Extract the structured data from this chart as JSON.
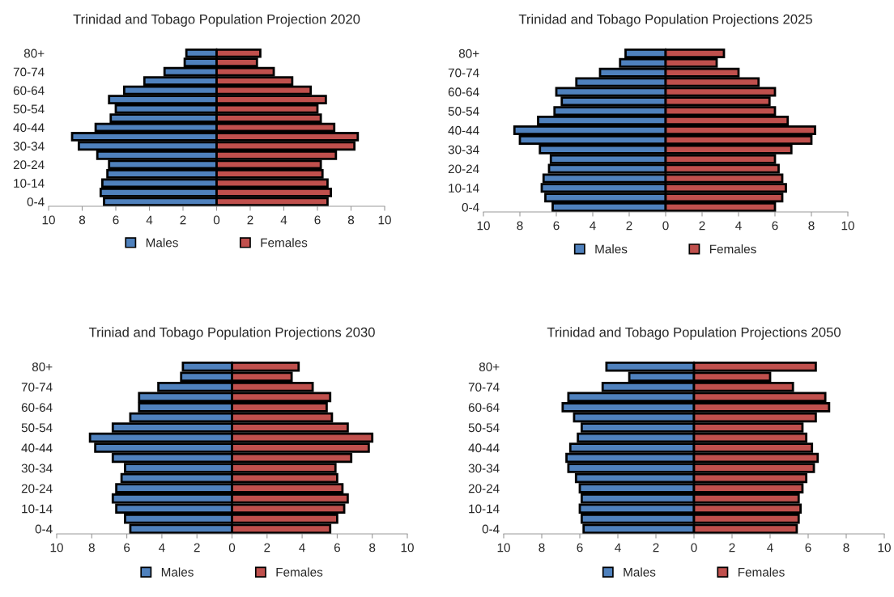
{
  "chart_data": [
    {
      "type": "bar",
      "orientation": "horizontal",
      "title": "Trinidad and Tobago Population Projection 2020",
      "categories": [
        "80+",
        null,
        "70-74",
        null,
        "60-64",
        null,
        "50-54",
        null,
        "40-44",
        null,
        "30-34",
        null,
        "20-24",
        null,
        "10-14",
        null,
        "0-4"
      ],
      "series": [
        {
          "name": "Males",
          "color": "#4f81bd",
          "values": [
            -1.8,
            -1.9,
            -3.1,
            -4.3,
            -5.5,
            -6.4,
            -6.0,
            -6.3,
            -7.2,
            -8.6,
            -8.2,
            -7.1,
            -6.4,
            -6.5,
            -6.8,
            -6.9,
            -6.7
          ]
        },
        {
          "name": "Females",
          "color": "#c0504d",
          "values": [
            2.6,
            2.4,
            3.4,
            4.5,
            5.6,
            6.5,
            6.0,
            6.2,
            7.0,
            8.4,
            8.2,
            7.1,
            6.2,
            6.3,
            6.6,
            6.8,
            6.6
          ]
        }
      ],
      "xlim": [
        -10,
        10
      ],
      "xticks": [
        {
          "value": -10,
          "label": "10"
        },
        {
          "value": -8,
          "label": "8"
        },
        {
          "value": -6,
          "label": "6"
        },
        {
          "value": -4,
          "label": "4"
        },
        {
          "value": -2,
          "label": "2"
        },
        0,
        2,
        4,
        6,
        8,
        10
      ],
      "legend": "bottom",
      "stacked": true
    },
    {
      "type": "bar",
      "orientation": "horizontal",
      "title": "Trinidad and Tobago Population Projections 2025",
      "categories": [
        "80+",
        null,
        "70-74",
        null,
        "60-64",
        null,
        "50-54",
        null,
        "40-44",
        null,
        "30-34",
        null,
        "20-24",
        null,
        "10-14",
        null,
        "0-4"
      ],
      "series": [
        {
          "name": "Males",
          "color": "#4f81bd",
          "values": [
            -2.2,
            -2.5,
            -3.6,
            -4.9,
            -6.0,
            -5.7,
            -6.1,
            -7.0,
            -8.3,
            -8.0,
            -6.9,
            -6.3,
            -6.4,
            -6.7,
            -6.8,
            -6.6,
            -6.2
          ]
        },
        {
          "name": "Females",
          "color": "#c0504d",
          "values": [
            3.2,
            2.8,
            4.0,
            5.1,
            6.0,
            5.7,
            6.0,
            6.7,
            8.2,
            8.0,
            6.9,
            6.0,
            6.2,
            6.4,
            6.6,
            6.4,
            6.0
          ]
        }
      ],
      "xlim": [
        -10,
        10
      ],
      "xticks": [
        {
          "value": -10,
          "label": "10"
        },
        {
          "value": -8,
          "label": "8"
        },
        {
          "value": -6,
          "label": "6"
        },
        {
          "value": -4,
          "label": "4"
        },
        {
          "value": -2,
          "label": "2"
        },
        0,
        2,
        4,
        6,
        8,
        10
      ],
      "legend": "bottom",
      "stacked": true
    },
    {
      "type": "bar",
      "orientation": "horizontal",
      "title": "Triniad and Tobago Population Projections 2030",
      "categories": [
        "80+",
        null,
        "70-74",
        null,
        "60-64",
        null,
        "50-54",
        null,
        "40-44",
        null,
        "30-34",
        null,
        "20-24",
        null,
        "10-14",
        null,
        "0-4"
      ],
      "series": [
        {
          "name": "Males",
          "color": "#4f81bd",
          "values": [
            -2.8,
            -2.9,
            -4.2,
            -5.3,
            -5.3,
            -5.8,
            -6.8,
            -8.1,
            -7.8,
            -6.8,
            -6.1,
            -6.3,
            -6.6,
            -6.8,
            -6.6,
            -6.1,
            -5.8
          ]
        },
        {
          "name": "Females",
          "color": "#c0504d",
          "values": [
            3.8,
            3.4,
            4.6,
            5.6,
            5.4,
            5.7,
            6.6,
            8.0,
            7.8,
            6.8,
            5.9,
            6.0,
            6.3,
            6.6,
            6.4,
            6.0,
            5.6
          ]
        }
      ],
      "xlim": [
        -10,
        10
      ],
      "xticks": [
        {
          "value": -10,
          "label": "10"
        },
        {
          "value": -8,
          "label": "8"
        },
        {
          "value": -6,
          "label": "6"
        },
        {
          "value": -4,
          "label": "4"
        },
        {
          "value": -2,
          "label": "2"
        },
        0,
        2,
        4,
        6,
        8,
        10
      ],
      "legend": "bottom",
      "stacked": true
    },
    {
      "type": "bar",
      "orientation": "horizontal",
      "title": "Trinidad and Tobago Population Projections 2050",
      "categories": [
        "80+",
        null,
        "70-74",
        null,
        "60-64",
        null,
        "50-54",
        null,
        "40-44",
        null,
        "30-34",
        null,
        "20-24",
        null,
        "10-14",
        null,
        "0-4"
      ],
      "series": [
        {
          "name": "Males",
          "color": "#4f81bd",
          "values": [
            -4.6,
            -3.4,
            -4.8,
            -6.6,
            -6.9,
            -6.3,
            -5.9,
            -6.1,
            -6.5,
            -6.7,
            -6.6,
            -6.2,
            -6.0,
            -5.9,
            -6.0,
            -5.9,
            -5.8
          ]
        },
        {
          "name": "Females",
          "color": "#c0504d",
          "values": [
            6.4,
            4.0,
            5.2,
            6.9,
            7.1,
            6.4,
            5.7,
            5.9,
            6.2,
            6.5,
            6.3,
            5.9,
            5.7,
            5.5,
            5.6,
            5.5,
            5.4
          ]
        }
      ],
      "xlim": [
        -10,
        10
      ],
      "xticks": [
        {
          "value": -10,
          "label": "10"
        },
        {
          "value": -8,
          "label": "8"
        },
        {
          "value": -6,
          "label": "6"
        },
        {
          "value": -4,
          "label": "4"
        },
        {
          "value": -2,
          "label": "2"
        },
        0,
        2,
        4,
        6,
        8,
        10
      ],
      "legend": "bottom",
      "stacked": true
    }
  ]
}
